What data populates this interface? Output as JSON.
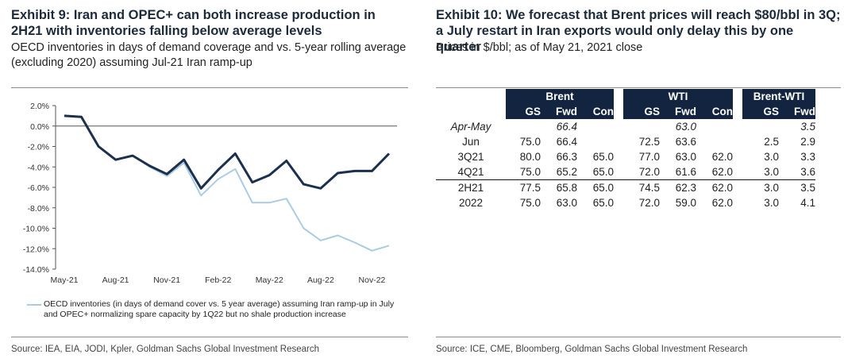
{
  "left": {
    "title": "Exhibit 9: Iran and OPEC+ can both increase production in 2H21 with inventories falling below average levels",
    "subtitle": "OECD inventories in days of demand coverage and vs. 5-year rolling average (excluding 2020) assuming Jul-21 Iran ramp-up",
    "legend_text": "OECD inventories (in days of demand cover vs. 5 year average) assuming Iran ramp-up in July and OPEC+ normalizing spare capacity by 1Q22 but no shale production increase",
    "source": "Source: IEA, EIA, JODI, Kpler, Goldman Sachs Global Investment Research"
  },
  "right": {
    "title": "Exhibit 10: We forecast that Brent prices will reach $80/bbl in 3Q; a July restart in Iran exports would only delay this by one quarter",
    "subtitle": "Prices in $/bbl; as of May 21, 2021 close",
    "source": "Source: ICE, CME, Bloomberg, Goldman Sachs Global Investment Research",
    "table": {
      "groups": [
        "Brent",
        "WTI",
        "Brent-WTI"
      ],
      "subheaders": {
        "brent": [
          "GS",
          "Fwd",
          "Con"
        ],
        "wti": [
          "GS",
          "Fwd",
          "Con"
        ],
        "spread": [
          "GS",
          "Fwd"
        ]
      },
      "rows": [
        {
          "label": "Apr-May",
          "cells": [
            "",
            "66.4",
            "",
            "",
            "63.0",
            "",
            "",
            "3.5"
          ]
        },
        {
          "label": "Jun",
          "cells": [
            "75.0",
            "66.4",
            "",
            "72.5",
            "63.6",
            "",
            "2.5",
            "2.9"
          ]
        },
        {
          "label": "3Q21",
          "cells": [
            "80.0",
            "66.3",
            "65.0",
            "77.0",
            "63.0",
            "62.0",
            "3.0",
            "3.3"
          ]
        },
        {
          "label": "4Q21",
          "cells": [
            "75.0",
            "65.2",
            "65.0",
            "72.0",
            "61.6",
            "62.0",
            "3.0",
            "3.6"
          ]
        },
        {
          "label": "2H21",
          "cells": [
            "77.5",
            "65.8",
            "65.0",
            "74.5",
            "62.3",
            "62.0",
            "3.0",
            "3.5"
          ]
        },
        {
          "label": "2022",
          "cells": [
            "75.0",
            "63.0",
            "65.0",
            "72.0",
            "59.0",
            "62.0",
            "3.0",
            "4.1"
          ]
        }
      ]
    }
  },
  "chart_data": {
    "type": "line",
    "title": "",
    "xlabel": "",
    "ylabel": "",
    "ylim": [
      -14,
      2
    ],
    "yticks": [
      "2.0%",
      "0.0%",
      "-2.0%",
      "-4.0%",
      "-6.0%",
      "-8.0%",
      "-10.0%",
      "-12.0%",
      "-14.0%"
    ],
    "ytick_values": [
      2,
      0,
      -2,
      -4,
      -6,
      -8,
      -10,
      -12,
      -14
    ],
    "x_tick_labels": [
      "May-21",
      "Aug-21",
      "Nov-21",
      "Feb-22",
      "May-22",
      "Aug-22",
      "Nov-22"
    ],
    "x": [
      "May-21",
      "Jun-21",
      "Jul-21",
      "Aug-21",
      "Sep-21",
      "Oct-21",
      "Nov-21",
      "Dec-21",
      "Jan-22",
      "Feb-22",
      "Mar-22",
      "Apr-22",
      "May-22",
      "Jun-22",
      "Jul-22",
      "Aug-22",
      "Sep-22",
      "Oct-22",
      "Nov-22",
      "Dec-22"
    ],
    "grid": false,
    "series": [
      {
        "name": "",
        "color": "#1b2f4f",
        "values": [
          1.0,
          0.9,
          -2.0,
          -3.3,
          -2.9,
          -3.9,
          -4.7,
          -3.3,
          -6.1,
          -4.3,
          -2.7,
          -5.5,
          -4.8,
          -3.4,
          -5.7,
          -6.1,
          -4.6,
          -4.4,
          -4.4,
          -2.7
        ]
      },
      {
        "name": "OECD inventories (in days of demand cover vs. 5 year average) assuming Iran ramp-up in July and OPEC+ normalizing spare capacity by 1Q22 but no shale production increase",
        "color": "#a9cce3",
        "values": [
          1.0,
          0.9,
          -2.0,
          -3.3,
          -2.9,
          -4.0,
          -4.9,
          -3.6,
          -6.8,
          -5.2,
          -4.2,
          -7.5,
          -7.5,
          -7.1,
          -10.0,
          -11.2,
          -10.7,
          -11.4,
          -12.2,
          -11.7
        ]
      }
    ]
  },
  "colors": {
    "table_header": "#12243f",
    "dark_line": "#1b2f4f",
    "light_line": "#a9cce3"
  }
}
